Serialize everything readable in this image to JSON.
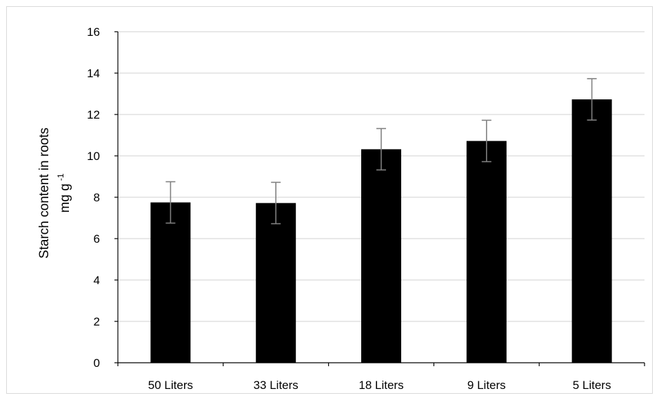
{
  "chart_data": {
    "type": "bar",
    "title": "",
    "xlabel": "",
    "ylabel_line1": "Starch content in roots",
    "ylabel_line2": "mg g",
    "ylabel_superscript": "-1",
    "categories": [
      "50 Liters",
      "33 Liters",
      "18 Liters",
      "9 Liters",
      "5 Liters"
    ],
    "values": [
      7.75,
      7.72,
      10.32,
      10.72,
      12.73
    ],
    "error_bars": [
      1.0,
      1.0,
      1.0,
      1.0,
      1.0
    ],
    "ylim": [
      0,
      16
    ],
    "yticks": [
      0,
      2,
      4,
      6,
      8,
      10,
      12,
      14,
      16
    ],
    "grid": true,
    "legend": "none",
    "colors": {
      "bar": "#000000",
      "error_bar": "#808080",
      "grid": "#d9d9d9",
      "axis": "#000000"
    }
  }
}
